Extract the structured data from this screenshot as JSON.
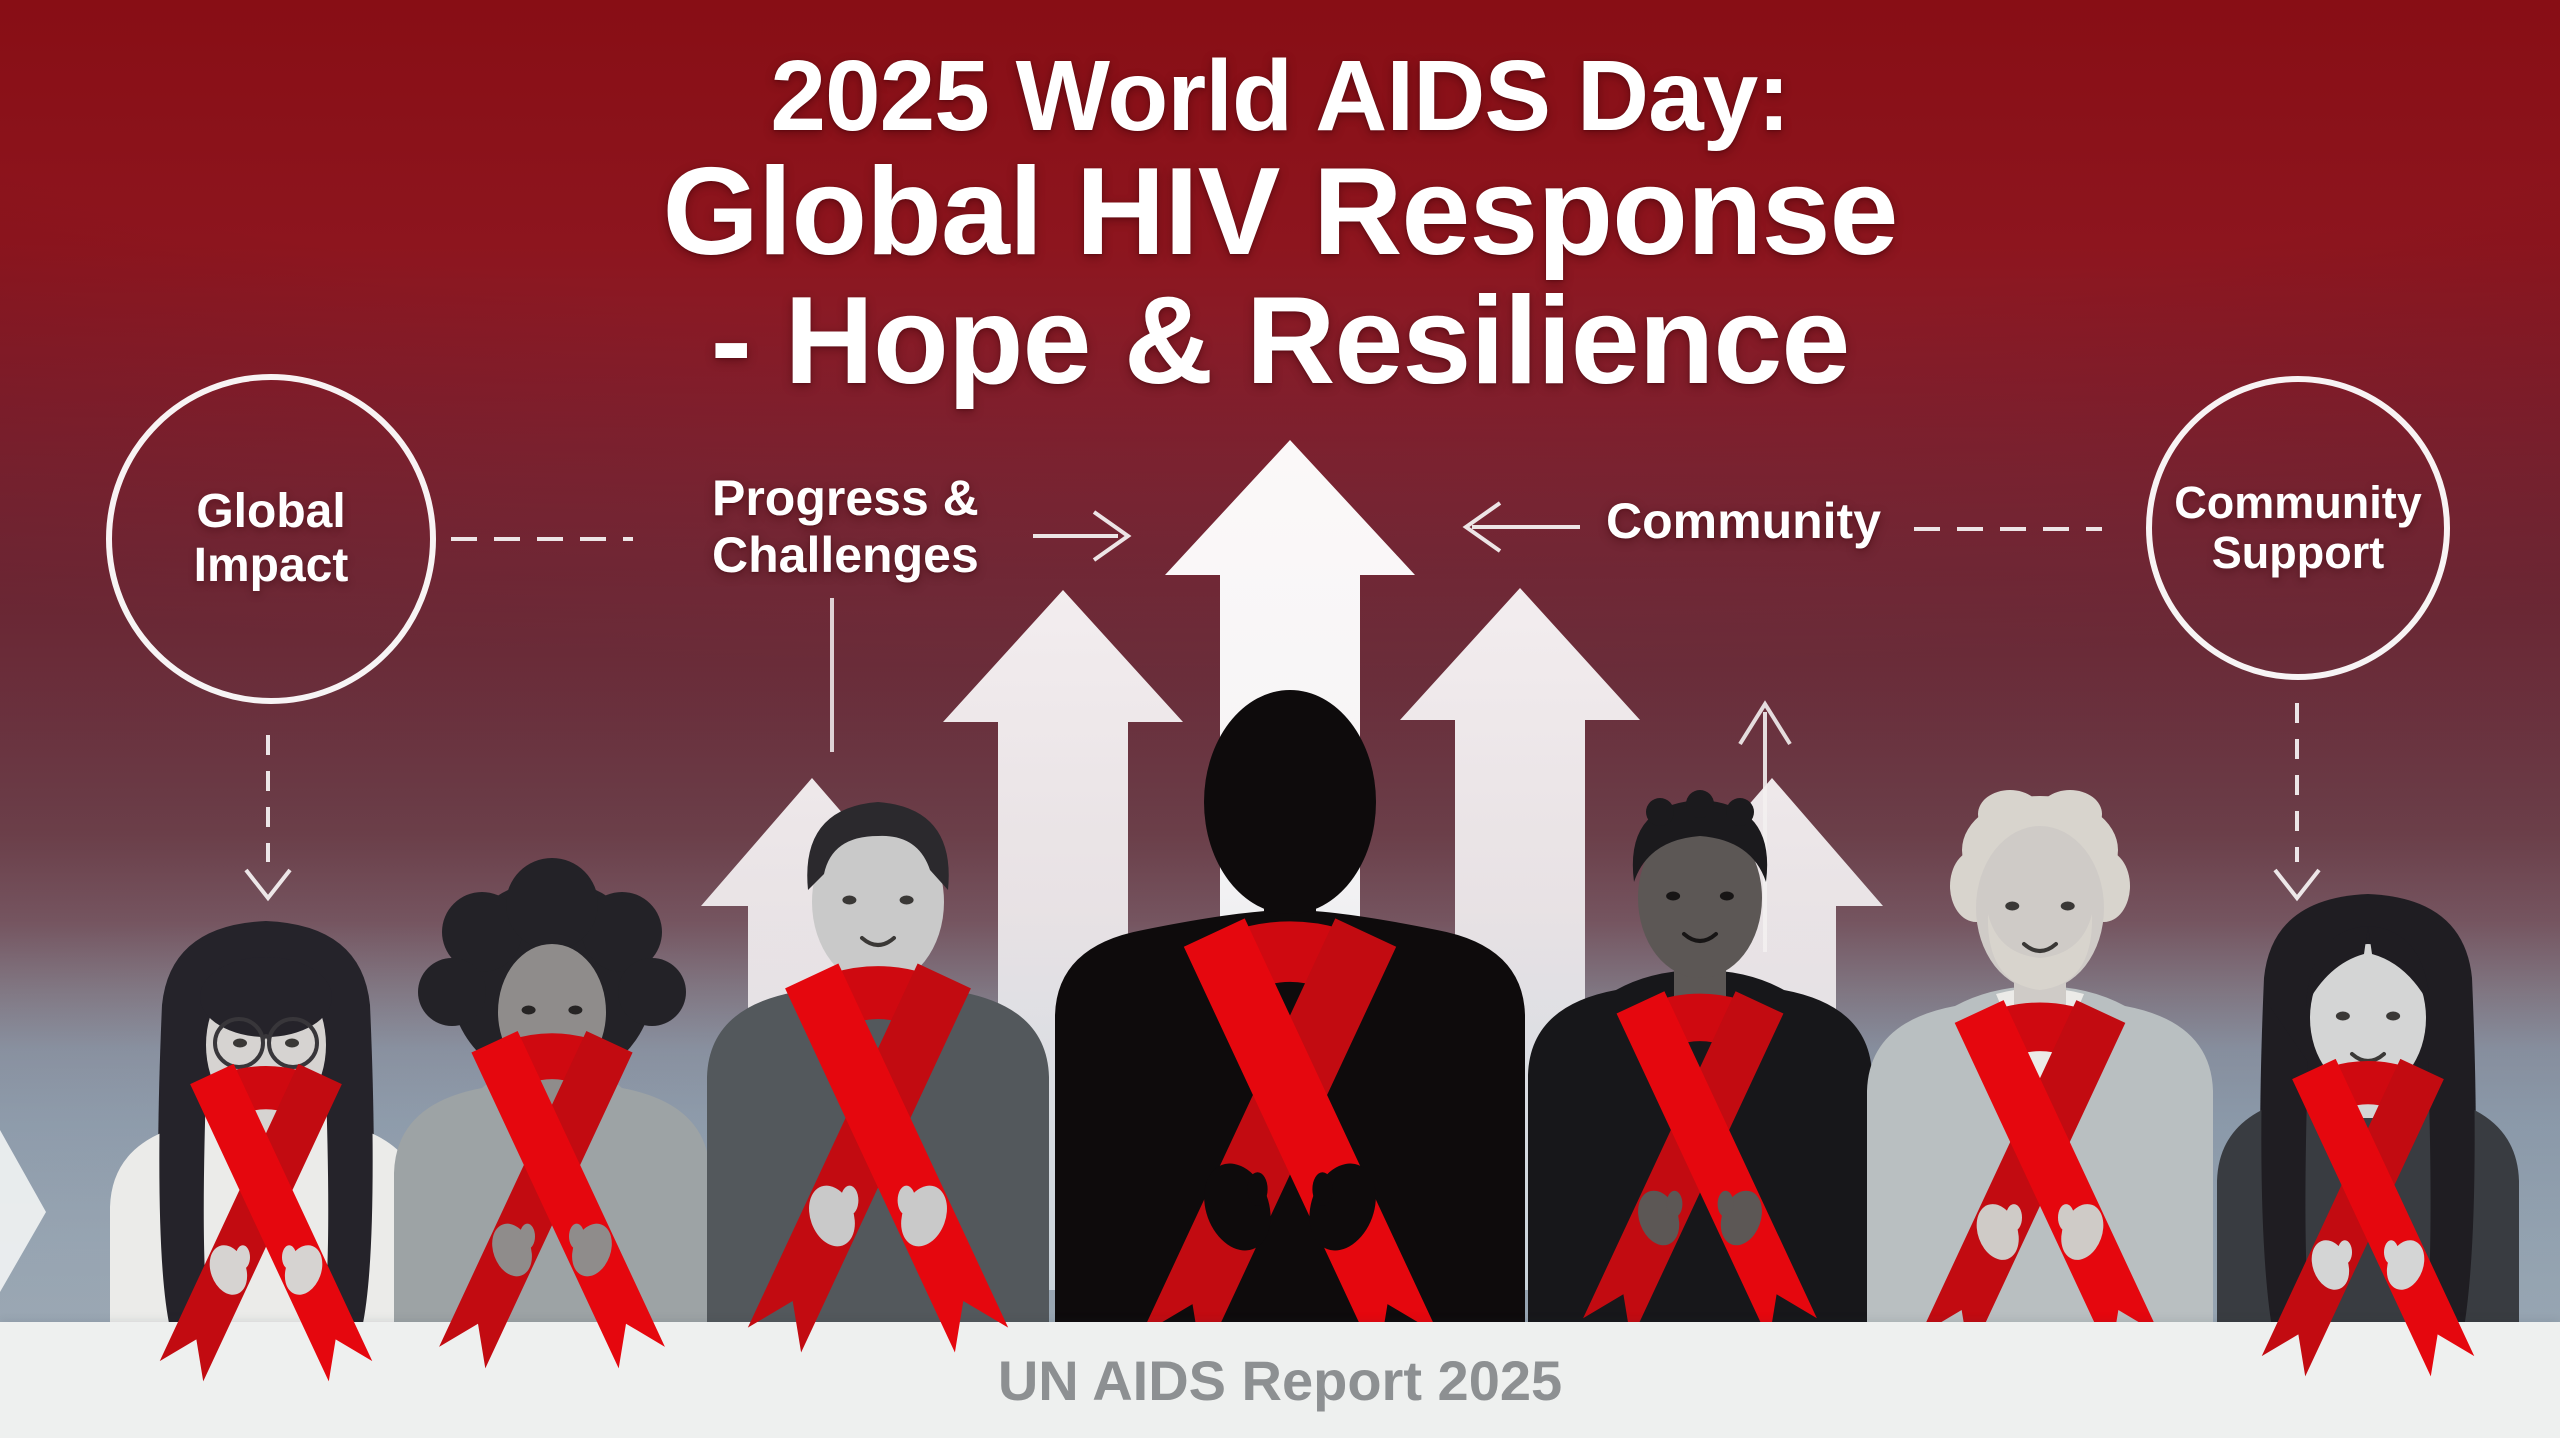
{
  "title": {
    "line1": "2025 World AIDS Day:",
    "line2": "Global HIV Response",
    "line3": "- Hope & Resilience"
  },
  "left_circle": {
    "lines": [
      "Global",
      "Impact"
    ]
  },
  "right_circle": {
    "lines": [
      "Community",
      "Support"
    ]
  },
  "progress_label": {
    "lines": [
      "Progress &",
      "Challenges"
    ]
  },
  "community_label": {
    "text": "Community"
  },
  "banner": {
    "text": "UN AIDS Report 2025"
  },
  "colors": {
    "ribbon_red": "#e5070e",
    "ribbon_red_dark": "#c20b11",
    "ribbon_loop": "#cf0910",
    "background_top_red": "#880e15",
    "background_bottom_blue": "#c3e9f6",
    "banner_background": "#eef0ef",
    "banner_text_gray": "#8d9092",
    "line_white": "#f3eff0",
    "silhouette_black": "#0e0b0c"
  },
  "people": [
    {
      "label": "young woman with glasses holding red ribbon"
    },
    {
      "label": "woman with afro hair holding red ribbon"
    },
    {
      "label": "young man with short dark hair holding red ribbon"
    },
    {
      "label": "central silhouette figure wearing large red ribbon"
    },
    {
      "label": "smiling man with dark skin holding red ribbon"
    },
    {
      "label": "blond bearded man holding red ribbon"
    },
    {
      "label": "young woman with long dark hair holding red ribbon"
    }
  ]
}
